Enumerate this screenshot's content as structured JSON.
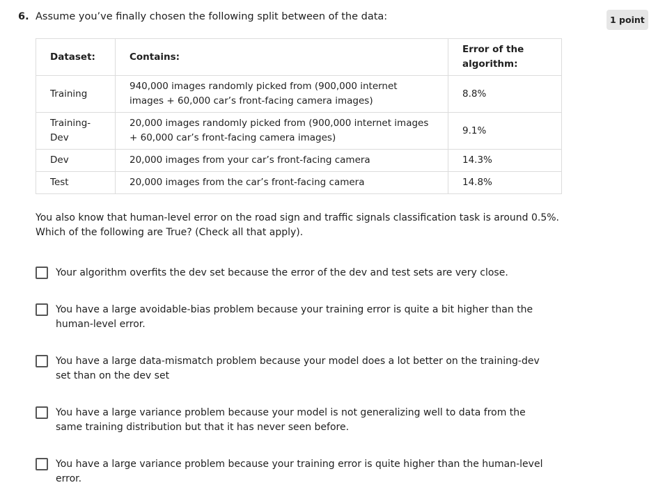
{
  "question": {
    "number": "6.",
    "prompt": "Assume you’ve finally chosen the following split between of the data:",
    "points": "1 point"
  },
  "table": {
    "headers": [
      "Dataset:",
      "Contains:",
      "Error of the algorithm:"
    ],
    "rows": [
      {
        "dataset": "Training",
        "contains": "940,000 images randomly picked from (900,000 internet images + 60,000 car’s front-facing camera images)",
        "error": "8.8%"
      },
      {
        "dataset": "Training-Dev",
        "contains": "20,000 images randomly picked from (900,000 internet images + 60,000 car’s front-facing camera images)",
        "error": "9.1%"
      },
      {
        "dataset": "Dev",
        "contains": "20,000 images from your car’s front-facing camera",
        "error": "14.3%"
      },
      {
        "dataset": "Test",
        "contains": "20,000 images from the car’s front-facing camera",
        "error": "14.8%"
      }
    ]
  },
  "context": "You also know that human-level error on the road sign and traffic signals classification task is around 0.5%. Which of the following are True? (Check all that apply).",
  "options": [
    {
      "label": "Your algorithm overfits the dev set because the error of the dev and test sets are very close.",
      "checked": false
    },
    {
      "label": "You have a large avoidable-bias problem because your training error is quite a bit higher than the human-level error.",
      "checked": false
    },
    {
      "label": "You have a large data-mismatch problem because your model does a lot better on the training-dev set than on the dev set",
      "checked": false
    },
    {
      "label": "You have a large variance problem because your model is not generalizing well to data from the same training distribution but that it has never seen before.",
      "checked": false
    },
    {
      "label": "You have a large variance problem because your training error is quite higher than the human-level error.",
      "checked": false
    }
  ]
}
